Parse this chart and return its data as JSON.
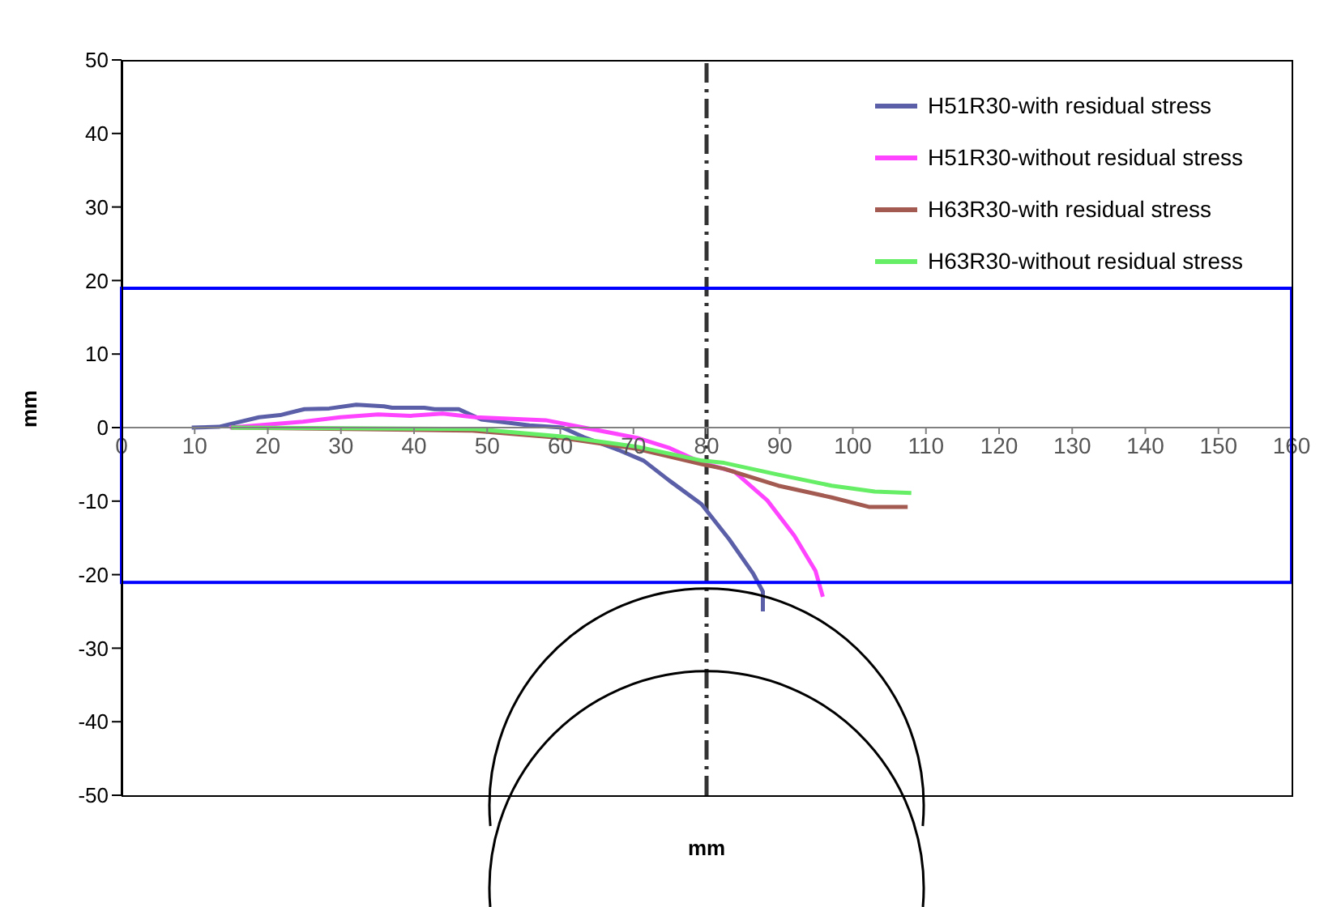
{
  "chart_data": {
    "type": "line",
    "xlabel": "mm",
    "ylabel": "mm",
    "xlim": [
      0,
      160
    ],
    "xticks": [
      0,
      10,
      20,
      30,
      40,
      50,
      60,
      70,
      80,
      90,
      100,
      110,
      120,
      130,
      140,
      150,
      160
    ],
    "ylim": [
      -50,
      50
    ],
    "yticks": [
      -50,
      -40,
      -30,
      -20,
      -10,
      0,
      10,
      20,
      30,
      40,
      50
    ],
    "grid": false,
    "legend": "top right",
    "marker": "none",
    "line_style": "solid",
    "ref_lines": [
      {
        "axis": "x",
        "value": 80,
        "color": "#333333",
        "line_style": "dashed"
      }
    ],
    "series": [
      {
        "name": "H51R30-with residual stress",
        "color": "#5b5fa8",
        "x": [
          9.6,
          13.3,
          18.8,
          21.7,
          25,
          28.4,
          32.1,
          35.9,
          37,
          41.4,
          42.8,
          46.1,
          49.2,
          55.8,
          60.3,
          63.2,
          67.6,
          71.4,
          74.9,
          79.3,
          83.1,
          86.4,
          87.7,
          87.7
        ],
        "values": [
          0,
          0.1,
          1.4,
          1.7,
          2.5,
          2.6,
          3.1,
          2.9,
          2.7,
          2.7,
          2.5,
          2.5,
          1.1,
          0.3,
          0,
          -1.3,
          -2.9,
          -4.5,
          -7.2,
          -10.4,
          -15.2,
          -19.9,
          -22.3,
          -25
        ]
      },
      {
        "name": "H51R30-without residual stress",
        "color": "#ff44ff",
        "x": [
          14.8,
          24.8,
          29.9,
          35.1,
          39.5,
          43.9,
          48.4,
          58,
          63.2,
          70.5,
          75,
          79.4,
          83.8,
          88.3,
          92,
          94.9,
          95.9
        ],
        "values": [
          0,
          0.8,
          1.4,
          1.8,
          1.6,
          1.9,
          1.4,
          1,
          0,
          -1.4,
          -2.8,
          -4.8,
          -6,
          -9.9,
          -14.7,
          -19.5,
          -23
        ]
      },
      {
        "name": "H63R30-with residual stress",
        "color": "#a35a50",
        "x": [
          15,
          47.6,
          60.2,
          70.5,
          79.4,
          82.4,
          89.8,
          97.1,
          102.3,
          107.5
        ],
        "values": [
          0,
          -0.4,
          -1.4,
          -2.9,
          -5,
          -5.6,
          -7.9,
          -9.5,
          -10.8,
          -10.8
        ]
      },
      {
        "name": "H63R30-without residual stress",
        "color": "#66ee66",
        "x": [
          15,
          48.4,
          60.2,
          70.5,
          79.4,
          82.4,
          89.8,
          97.1,
          103,
          108
        ],
        "values": [
          0,
          -0.2,
          -1.2,
          -2.6,
          -4.5,
          -4.8,
          -6.4,
          -7.9,
          -8.7,
          -8.9
        ]
      }
    ]
  }
}
